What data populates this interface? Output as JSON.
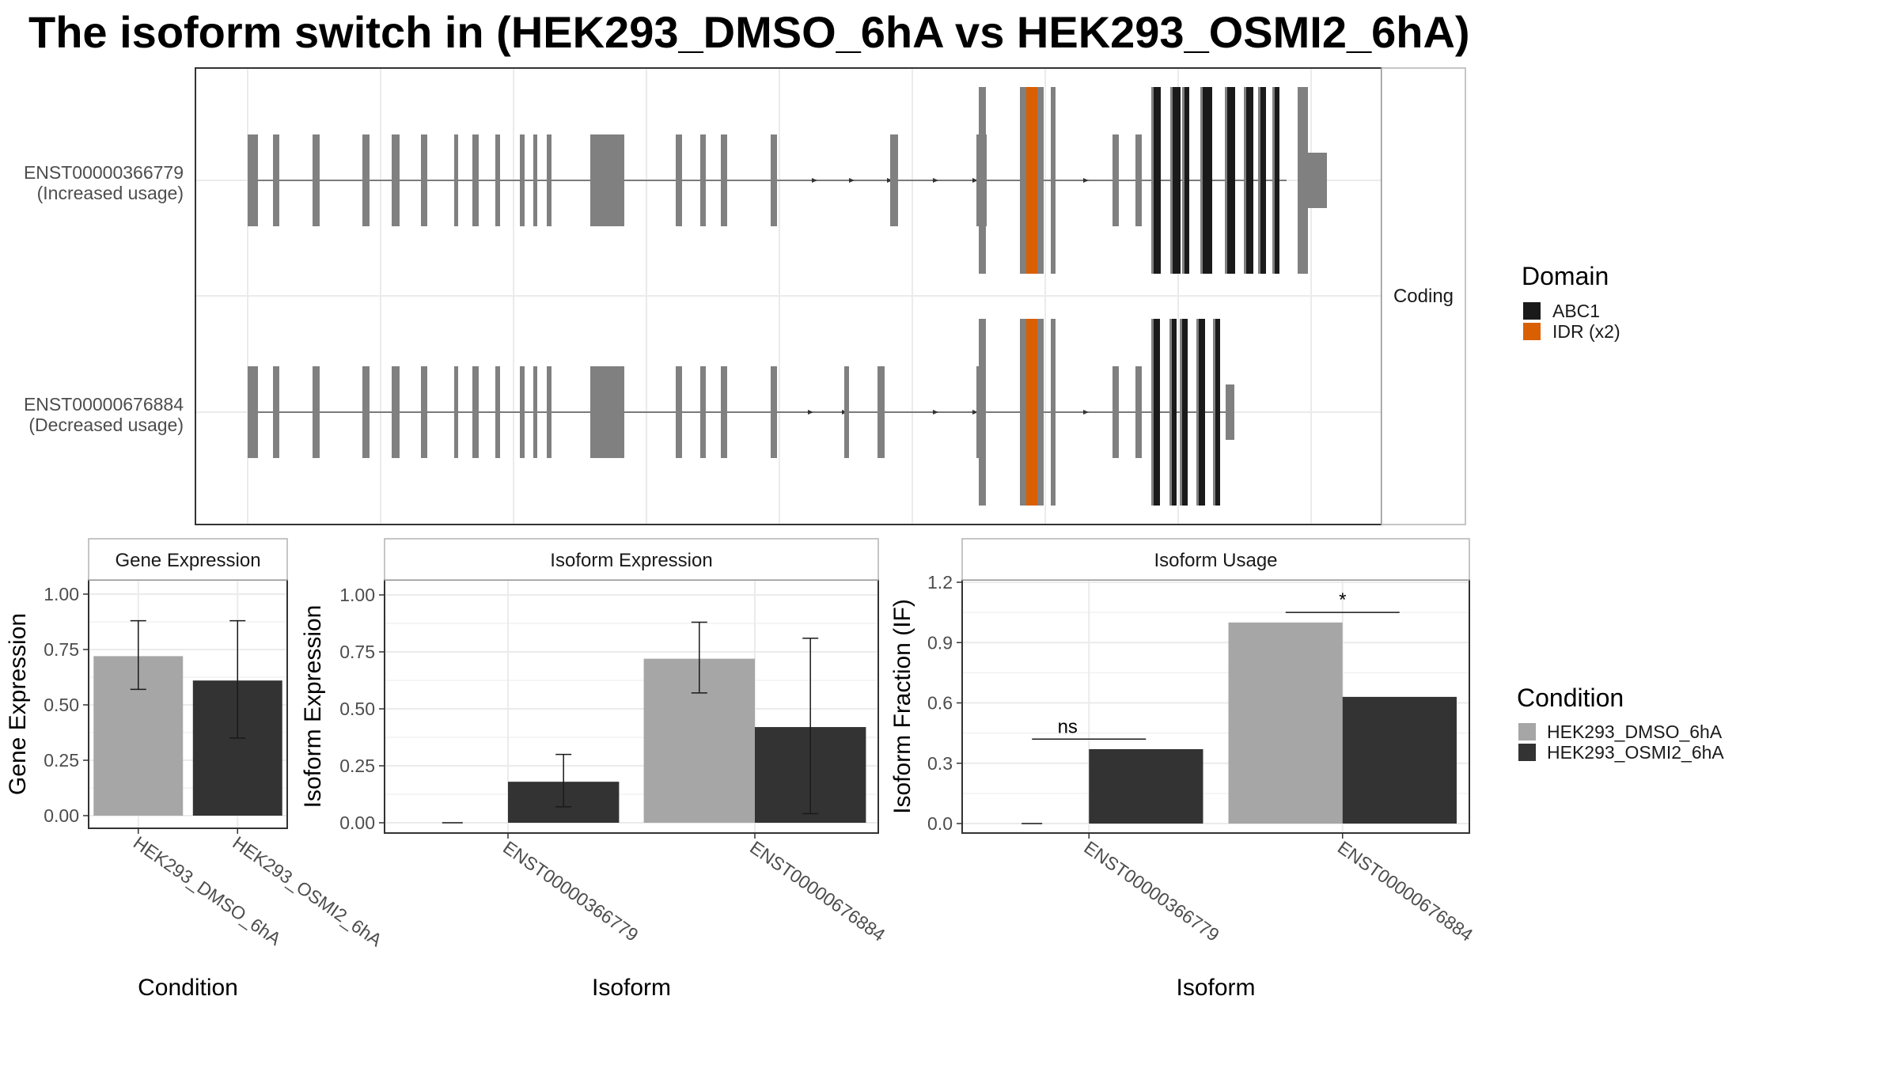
{
  "title": "The isoform switch in  (HEK293_DMSO_6hA vs HEK293_OSMI2_6hA)",
  "colors": {
    "exon": "#808080",
    "abc1": "#1a1a1a",
    "idr": "#d95f02",
    "dmso": "#a6a6a6",
    "osmi2": "#333333",
    "grid": "#ebebeb",
    "panel_border": "#333333",
    "strip_border": "#b3b3b3"
  },
  "structure": {
    "facet_label": "Coding",
    "transcripts": [
      {
        "id": "ENST00000366779",
        "usage": "(Increased usage)"
      },
      {
        "id": "ENST00000676884",
        "usage": "(Decreased usage)"
      }
    ],
    "legend_title": "Domain",
    "legend": [
      {
        "label": "ABC1",
        "color_key": "abc1"
      },
      {
        "label": "IDR (x2)",
        "color_key": "idr"
      }
    ]
  },
  "chart_data": [
    {
      "type": "bar",
      "title": "Gene Expression",
      "xlabel": "Condition",
      "ylabel": "Gene Expression",
      "categories": [
        "HEK293_DMSO_6hA",
        "HEK293_OSMI2_6hA"
      ],
      "values": [
        0.72,
        0.61
      ],
      "err_low": [
        0.57,
        0.35
      ],
      "err_high": [
        0.88,
        0.88
      ],
      "ylim": [
        -0.05,
        1.05
      ],
      "yticks": [
        "1.00",
        "0.75",
        "0.50",
        "0.25",
        "0.00"
      ],
      "ytick_values": [
        1.0,
        0.75,
        0.5,
        0.25,
        0.0
      ]
    },
    {
      "type": "bar",
      "title": "Isoform Expression",
      "xlabel": "Isoform",
      "ylabel": "Isoform Expression",
      "categories": [
        "ENST00000366779",
        "ENST00000676884"
      ],
      "series": [
        {
          "name": "HEK293_DMSO_6hA",
          "values": [
            0.0,
            0.72
          ],
          "err_low": [
            0.0,
            0.57
          ],
          "err_high": [
            0.0,
            0.88
          ]
        },
        {
          "name": "HEK293_OSMI2_6hA",
          "values": [
            0.18,
            0.42
          ],
          "err_low": [
            0.07,
            0.04
          ],
          "err_high": [
            0.3,
            0.81
          ]
        }
      ],
      "ylim": [
        -0.05,
        1.05
      ],
      "yticks": [
        "1.00",
        "0.75",
        "0.50",
        "0.25",
        "0.00"
      ],
      "ytick_values": [
        1.0,
        0.75,
        0.5,
        0.25,
        0.0
      ]
    },
    {
      "type": "bar",
      "title": "Isoform Usage",
      "xlabel": "Isoform",
      "ylabel": "Isoform Fraction (IF)",
      "categories": [
        "ENST00000366779",
        "ENST00000676884"
      ],
      "series": [
        {
          "name": "HEK293_DMSO_6hA",
          "values": [
            0.0,
            1.0
          ]
        },
        {
          "name": "HEK293_OSMI2_6hA",
          "values": [
            0.37,
            0.63
          ]
        }
      ],
      "significance": [
        "ns",
        "*"
      ],
      "ylim": [
        -0.05,
        1.22
      ],
      "yticks": [
        "1.2",
        "0.9",
        "0.6",
        "0.3",
        "0.0"
      ],
      "ytick_values": [
        1.2,
        0.9,
        0.6,
        0.3,
        0.0
      ]
    }
  ],
  "condition_legend": {
    "title": "Condition",
    "items": [
      {
        "label": "HEK293_DMSO_6hA",
        "color_key": "dmso"
      },
      {
        "label": "HEK293_OSMI2_6hA",
        "color_key": "osmi2"
      }
    ]
  }
}
